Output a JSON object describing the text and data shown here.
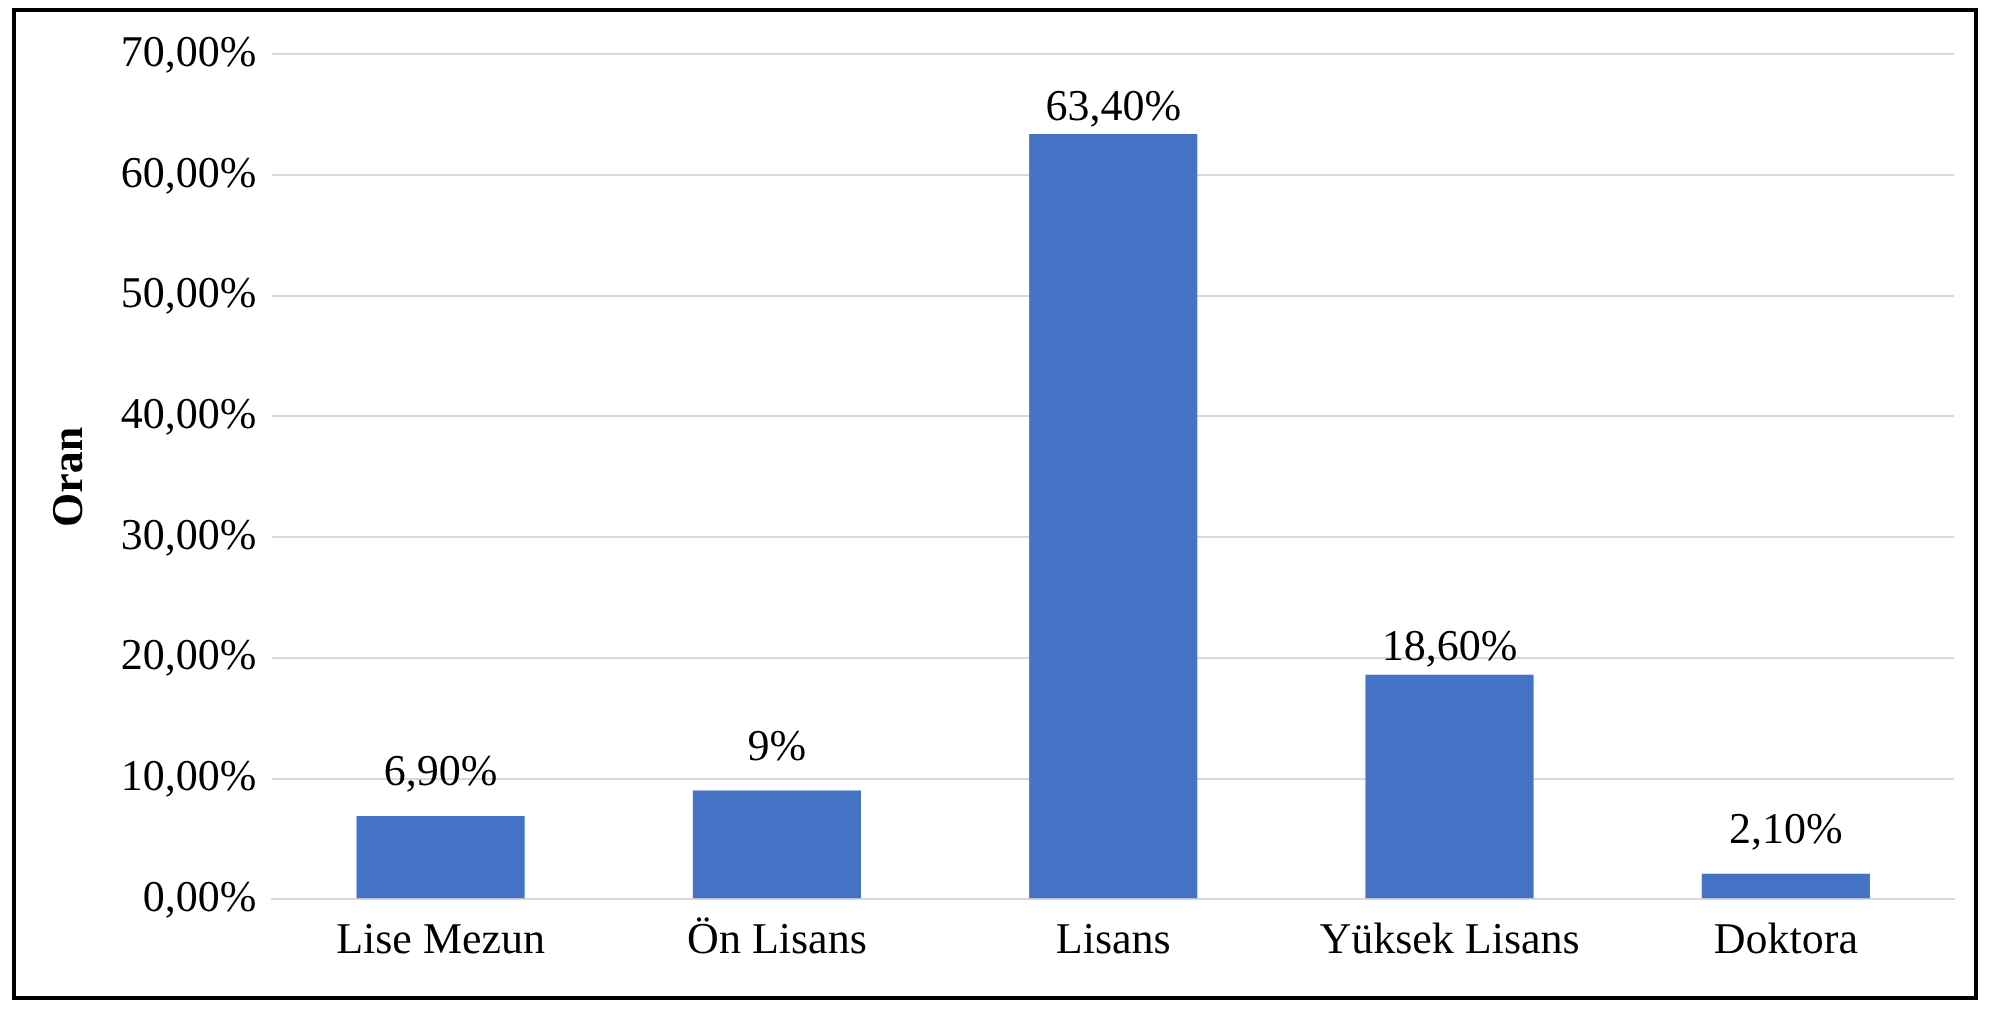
{
  "chart_data": {
    "type": "bar",
    "ylabel": "Oran",
    "categories": [
      "Lise Mezun",
      "Ön Lisans",
      "Lisans",
      "Yüksek Lisans",
      "Doktora"
    ],
    "values": [
      6.9,
      9,
      63.4,
      18.6,
      2.1
    ],
    "value_labels": [
      "6,90%",
      "9%",
      "63,40%",
      "18,60%",
      "2,10%"
    ],
    "color": "#4472c4",
    "ylim": [
      0,
      70
    ],
    "yticks": [
      {
        "value": 0,
        "label": "0,00%"
      },
      {
        "value": 10,
        "label": "10,00%"
      },
      {
        "value": 20,
        "label": "20,00%"
      },
      {
        "value": 30,
        "label": "30,00%"
      },
      {
        "value": 40,
        "label": "40,00%"
      },
      {
        "value": 50,
        "label": "50,00%"
      },
      {
        "value": 60,
        "label": "60,00%"
      },
      {
        "value": 70,
        "label": "70,00%"
      }
    ],
    "grid": "y",
    "legend": false
  }
}
